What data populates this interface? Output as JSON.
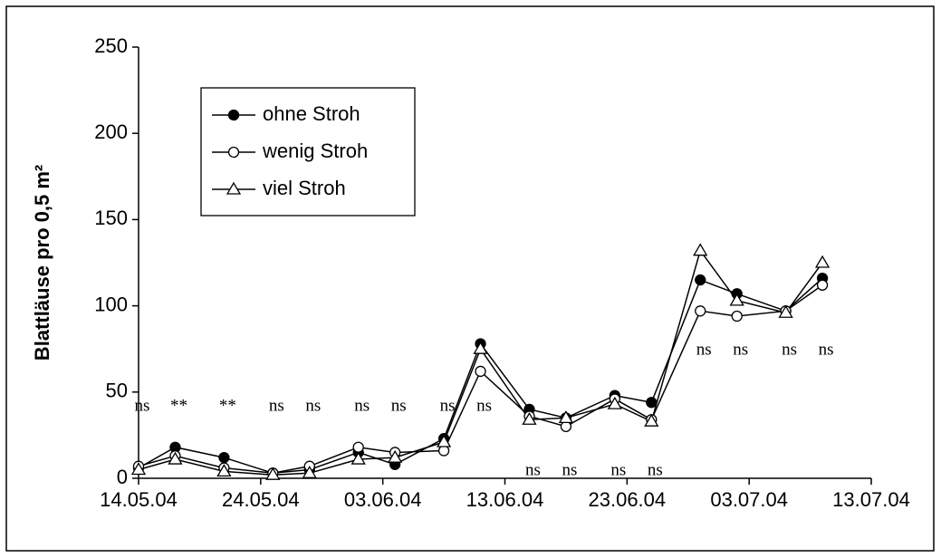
{
  "chart_data": {
    "type": "line",
    "y_label": "Blattläuse pro 0,5 m²",
    "x": [
      "14.05.04",
      "17.05.04",
      "21.05.04",
      "25.05.04",
      "28.05.04",
      "01.06.04",
      "04.06.04",
      "08.06.04",
      "11.06.04",
      "15.06.04",
      "18.06.04",
      "22.06.04",
      "25.06.04",
      "29.06.04",
      "02.07.04",
      "06.07.04",
      "09.07.04"
    ],
    "series": [
      {
        "name": "ohne Stroh",
        "color": "#000000",
        "marker": "filled-circle",
        "values": [
          6,
          18,
          12,
          3,
          5,
          15,
          8,
          23,
          78,
          40,
          35,
          48,
          44,
          115,
          107,
          97,
          116
        ]
      },
      {
        "name": "wenig Stroh",
        "color": "#000000",
        "marker": "open-circle",
        "values": [
          7,
          13,
          6,
          3,
          7,
          18,
          15,
          16,
          62,
          36,
          30,
          46,
          34,
          97,
          94,
          97,
          112
        ]
      },
      {
        "name": "viel Stroh",
        "color": "#000000",
        "marker": "open-triangle",
        "values": [
          5,
          11,
          4,
          2,
          3,
          11,
          12,
          21,
          75,
          34,
          35,
          43,
          33,
          132,
          103,
          96,
          125
        ]
      }
    ],
    "annotations": [
      "ns",
      "**",
      "**",
      "ns",
      "ns",
      "ns",
      "ns",
      "ns",
      "ns",
      "ns",
      "ns",
      "ns",
      "ns",
      "ns",
      "ns",
      "ns",
      "ns"
    ],
    "xlim": [
      "14.05.04",
      "13.07.04"
    ],
    "xticks": [
      "14.05.04",
      "24.05.04",
      "03.06.04",
      "13.06.04",
      "23.06.04",
      "03.07.04",
      "13.07.04"
    ],
    "ylim": [
      0,
      250
    ],
    "yticks": [
      0,
      50,
      100,
      150,
      200,
      250
    ],
    "grid": false,
    "legend": "upper-left"
  }
}
